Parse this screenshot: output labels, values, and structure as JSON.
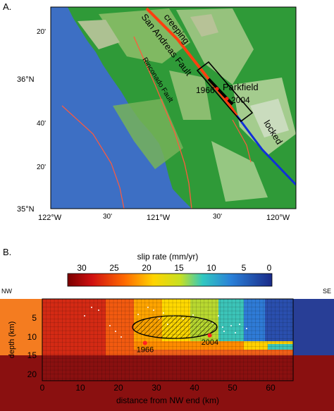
{
  "panel_a": {
    "label": "A.",
    "latitude_ticks": [
      {
        "label": "20'",
        "value": 36.333
      },
      {
        "label": "36°N",
        "value": 36.0
      },
      {
        "label": "40'",
        "value": 35.667
      },
      {
        "label": "20'",
        "value": 35.333
      },
      {
        "label": "35°N",
        "value": 35.0
      }
    ],
    "longitude_ticks": [
      {
        "label": "122°W",
        "value": -122.0
      },
      {
        "label": "30'",
        "value": -121.5
      },
      {
        "label": "121°W",
        "value": -121.0
      },
      {
        "label": "30'",
        "value": -120.5
      },
      {
        "label": "120°W",
        "value": -120.0
      }
    ],
    "annotations": {
      "creeping": "creeping",
      "san_andreas": "San Andreas Fault",
      "rinconado": "Rinconado Fault",
      "parkfield": "Parkfield",
      "year_1966": "1966",
      "year_2004": "2004",
      "locked": "locked"
    },
    "colors": {
      "ocean": "#3d6fc4",
      "land_low": "#2f9a38",
      "land_high": "#cfc9a8",
      "creeping_segment": "#ff4010",
      "locked_segment": "#1030d8",
      "faults": "#ff5a3c"
    }
  },
  "panel_b": {
    "label": "B.",
    "colorbar": {
      "title": "slip rate (mm/yr)",
      "ticks": [
        "30",
        "25",
        "20",
        "15",
        "10",
        "5",
        "0"
      ],
      "range": [
        0,
        32
      ]
    },
    "direction_left": "NW",
    "direction_right": "SE",
    "ylabel": "depth (km)",
    "xlabel": "distance from NW end (km)",
    "yticks": [
      "5",
      "10",
      "15",
      "20"
    ],
    "xticks": [
      "0",
      "10",
      "20",
      "30",
      "40",
      "50",
      "60"
    ],
    "events": [
      {
        "label": "1966",
        "distance_km": 27,
        "depth_km": 10
      },
      {
        "label": "2004",
        "distance_km": 44,
        "depth_km": 8
      }
    ]
  }
}
